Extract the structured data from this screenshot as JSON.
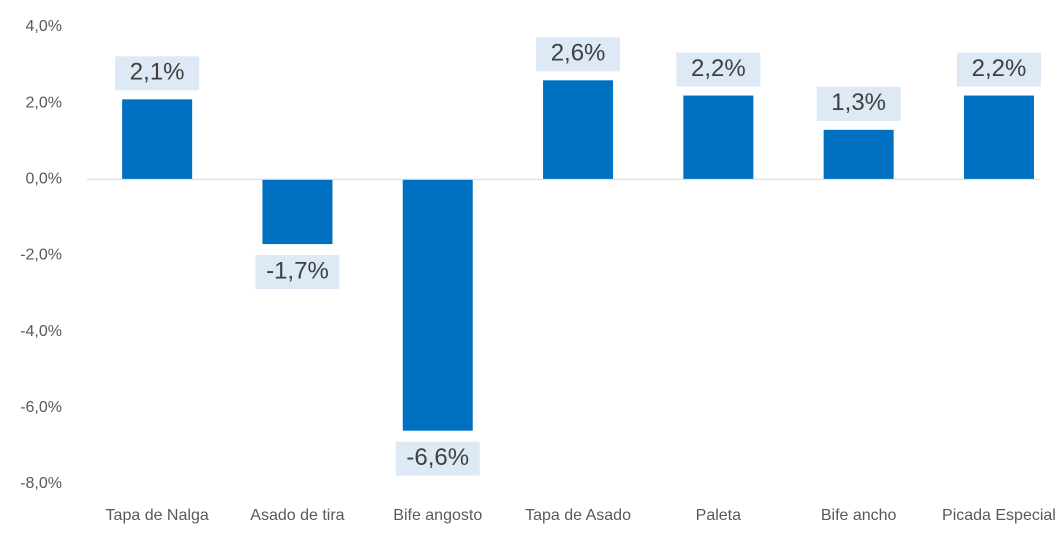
{
  "chart_data": {
    "type": "bar",
    "categories": [
      "Tapa de Nalga",
      "Asado de tira",
      "Bife angosto",
      "Tapa de Asado",
      "Paleta",
      "Bife ancho",
      "Picada Especial"
    ],
    "values": [
      2.1,
      -1.7,
      -6.6,
      2.6,
      2.2,
      1.3,
      2.2
    ],
    "value_labels": [
      "2,1%",
      "-1,7%",
      "-6,6%",
      "2,6%",
      "2,2%",
      "1,3%",
      "2,2%"
    ],
    "color": "#0070c0",
    "label_background": "#dde9f5",
    "ylim": [
      -8,
      4
    ],
    "yticks": [
      {
        "value": -8,
        "label": "-8,0%"
      },
      {
        "value": -6,
        "label": "-6,0%"
      },
      {
        "value": -4,
        "label": "-4,0%"
      },
      {
        "value": -2,
        "label": "-2,0%"
      },
      {
        "value": 0,
        "label": "0,0%"
      },
      {
        "value": 2,
        "label": "2,0%"
      },
      {
        "value": 4,
        "label": "4,0%"
      }
    ],
    "grid": false
  }
}
